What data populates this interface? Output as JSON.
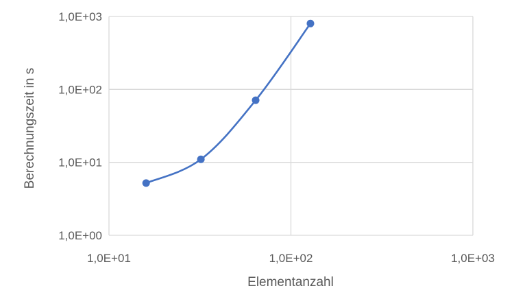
{
  "chart_data": {
    "type": "line",
    "xlabel": "Elementanzahl",
    "ylabel": "Berechnungszeit in s",
    "x_scale": "log",
    "y_scale": "log",
    "xlim": [
      10,
      1000
    ],
    "ylim": [
      1,
      1000
    ],
    "x_ticks": [
      {
        "value": 10,
        "label": "1,0E+01"
      },
      {
        "value": 100,
        "label": "1,0E+02"
      },
      {
        "value": 1000,
        "label": "1,0E+03"
      }
    ],
    "y_ticks": [
      {
        "value": 1,
        "label": "1,0E+00"
      },
      {
        "value": 10,
        "label": "1,0E+01"
      },
      {
        "value": 100,
        "label": "1,0E+02"
      },
      {
        "value": 1000,
        "label": "1,0E+03"
      }
    ],
    "grid": true,
    "smooth": true,
    "series": [
      {
        "color": "#4472C4",
        "x": [
          16,
          32,
          64,
          128
        ],
        "y": [
          5.2,
          11,
          71,
          800
        ]
      }
    ]
  }
}
